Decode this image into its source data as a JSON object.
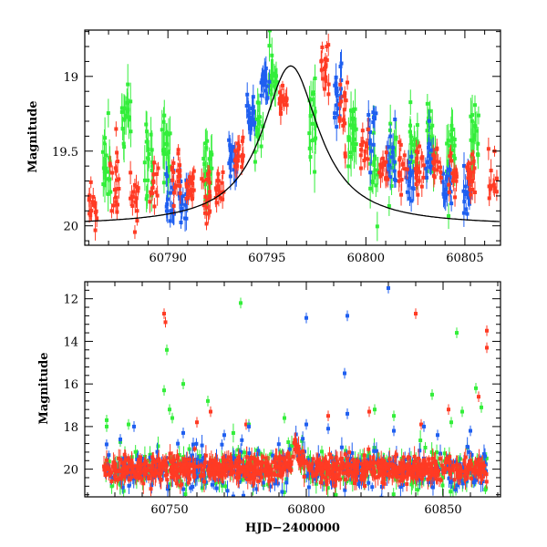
{
  "colors": {
    "red": "#ff3b24",
    "green": "#33ee3a",
    "blue": "#1f5ff0",
    "model": "#000000"
  },
  "chart_data": [
    {
      "type": "scatter",
      "panel": "top",
      "title": "",
      "xlabel": "",
      "ylabel": "Magnitude",
      "xlim": [
        60785.8,
        60806.8
      ],
      "ylim": [
        20.13,
        18.69
      ],
      "y_inverted": true,
      "xticks": [
        60790,
        60795,
        60800,
        60805
      ],
      "xtick_labels": [
        "60790",
        "60795",
        "60800",
        "60805"
      ],
      "yticks": [
        19,
        19.5,
        20
      ],
      "ytick_labels": [
        "19",
        "19.5",
        "20"
      ],
      "grid": false,
      "legend": "none",
      "model_curve": {
        "type": "line",
        "color": "black",
        "baseline_mag": 20.0,
        "peak_mag": 18.93,
        "peak_time": 60796.2,
        "timescale_days": 1.75
      },
      "series": [
        {
          "color": "red",
          "clusters": [
            [
              60786.2,
              19.85,
              0.15
            ],
            [
              60787.3,
              19.75,
              0.22
            ],
            [
              60788.3,
              19.8,
              0.2
            ],
            [
              60789.3,
              19.72,
              0.2
            ],
            [
              60790.4,
              19.68,
              0.2
            ],
            [
              60791.1,
              19.7,
              0.16
            ],
            [
              60791.9,
              19.78,
              0.18
            ],
            [
              60792.6,
              19.78,
              0.18
            ],
            [
              60793.6,
              19.55,
              0.15
            ],
            [
              60795.8,
              19.15,
              0.12
            ],
            [
              60797.9,
              18.95,
              0.18
            ],
            [
              60798.9,
              19.3,
              0.22
            ],
            [
              60799.9,
              19.5,
              0.22
            ],
            [
              60800.9,
              19.6,
              0.18
            ],
            [
              60801.9,
              19.62,
              0.2
            ],
            [
              60802.7,
              19.58,
              0.2
            ],
            [
              60803.6,
              19.6,
              0.2
            ],
            [
              60804.4,
              19.65,
              0.2
            ],
            [
              60805.3,
              19.65,
              0.2
            ],
            [
              60806.4,
              19.7,
              0.22
            ]
          ]
        },
        {
          "color": "green",
          "clusters": [
            [
              60786.9,
              19.6,
              0.3
            ],
            [
              60787.9,
              19.3,
              0.35
            ],
            [
              60789.0,
              19.6,
              0.3
            ],
            [
              60789.9,
              19.5,
              0.3
            ],
            [
              60792.0,
              19.6,
              0.3
            ],
            [
              60794.6,
              19.3,
              0.3
            ],
            [
              60795.3,
              18.95,
              0.25
            ],
            [
              60797.3,
              19.3,
              0.35
            ],
            [
              60799.3,
              19.4,
              0.3
            ],
            [
              60800.4,
              19.6,
              0.3
            ],
            [
              60801.4,
              19.5,
              0.3
            ],
            [
              60802.4,
              19.5,
              0.3
            ],
            [
              60803.3,
              19.4,
              0.3
            ],
            [
              60804.3,
              19.5,
              0.3
            ],
            [
              60805.5,
              19.4,
              0.3
            ]
          ]
        },
        {
          "color": "blue",
          "clusters": [
            [
              60790.1,
              19.8,
              0.18
            ],
            [
              60790.8,
              19.82,
              0.15
            ],
            [
              60793.3,
              19.55,
              0.15
            ],
            [
              60794.2,
              19.25,
              0.18
            ],
            [
              60794.9,
              19.05,
              0.15
            ],
            [
              60798.6,
              19.1,
              0.25
            ],
            [
              60800.3,
              19.3,
              0.3
            ],
            [
              60801.3,
              19.55,
              0.22
            ],
            [
              60802.2,
              19.7,
              0.2
            ],
            [
              60803.2,
              19.55,
              0.22
            ],
            [
              60804.1,
              19.72,
              0.18
            ],
            [
              60805.1,
              19.8,
              0.2
            ]
          ]
        }
      ]
    },
    {
      "type": "scatter",
      "panel": "bottom",
      "title": "",
      "xlabel": "HJD−2400000",
      "ylabel": "Magnitude",
      "xlim": [
        60719,
        60871
      ],
      "ylim": [
        21.3,
        11.2
      ],
      "y_inverted": true,
      "xticks": [
        60750,
        60800,
        60850
      ],
      "xtick_labels": [
        "60750",
        "60800",
        "60850"
      ],
      "yticks": [
        12,
        14,
        16,
        18,
        20
      ],
      "ytick_labels": [
        "12",
        "14",
        "16",
        "18",
        "20"
      ],
      "grid": false,
      "legend": "none",
      "baseline_band": {
        "x_start": 60726,
        "x_end": 60866,
        "mag": 20.0,
        "peak_time": 60796.2,
        "peak_mag": 18.93
      },
      "series": [
        {
          "color": "red",
          "outliers": [
            [
              60748,
              12.7
            ],
            [
              60748.5,
              13.1
            ],
            [
              60760,
              17.8
            ],
            [
              60765,
              17.3
            ],
            [
              60778,
              17.9
            ],
            [
              60808,
              17.5
            ],
            [
              60823,
              17.3
            ],
            [
              60840,
              12.7
            ],
            [
              60842,
              17.9
            ],
            [
              60852,
              17.2
            ],
            [
              60863,
              16.6
            ],
            [
              60866,
              13.5
            ],
            [
              60866,
              14.3
            ]
          ]
        },
        {
          "color": "green",
          "outliers": [
            [
              60727,
              17.7
            ],
            [
              60727,
              18.0
            ],
            [
              60735,
              17.9
            ],
            [
              60748,
              16.3
            ],
            [
              60749,
              14.4
            ],
            [
              60750,
              17.2
            ],
            [
              60751,
              17.6
            ],
            [
              60755,
              16.0
            ],
            [
              60764,
              16.8
            ],
            [
              60776,
              12.2
            ],
            [
              60779,
              17.9
            ],
            [
              60792,
              17.6
            ],
            [
              60825,
              17.2
            ],
            [
              60832,
              17.5
            ],
            [
              60846,
              16.5
            ],
            [
              60853,
              17.8
            ],
            [
              60855,
              13.6
            ],
            [
              60857,
              17.3
            ],
            [
              60862,
              16.2
            ],
            [
              60864,
              17.1
            ]
          ]
        },
        {
          "color": "blue",
          "outliers": [
            [
              60732,
              18.6
            ],
            [
              60737,
              18.0
            ],
            [
              60755,
              18.3
            ],
            [
              60770,
              18.4
            ],
            [
              60779,
              18.0
            ],
            [
              60800,
              12.9
            ],
            [
              60800,
              17.9
            ],
            [
              60808,
              18.1
            ],
            [
              60814,
              15.5
            ],
            [
              60815,
              12.8
            ],
            [
              60815,
              17.4
            ],
            [
              60830,
              11.5
            ],
            [
              60832,
              18.2
            ],
            [
              60843,
              18.0
            ],
            [
              60848,
              18.4
            ],
            [
              60860,
              18.2
            ]
          ]
        }
      ]
    }
  ]
}
